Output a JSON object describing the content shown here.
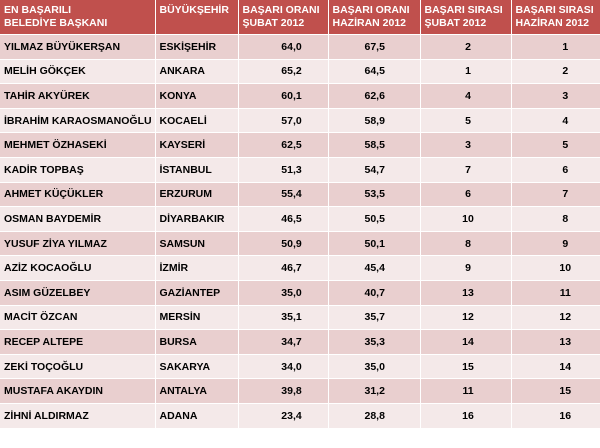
{
  "table": {
    "headers": [
      "EN BAŞARILI BELEDİYE BAŞKANI",
      "BÜYÜKŞEHİR",
      "BAŞARI ORANI ŞUBAT 2012",
      "BAŞARI ORANI HAZİRAN 2012",
      "BAŞARI SIRASI ŞUBAT 2012",
      "BAŞARI SIRASI HAZİRAN 2012"
    ],
    "header_lines": [
      [
        "EN BAŞARILI",
        "BELEDİYE BAŞKANI"
      ],
      [
        "BÜYÜKŞEHİR",
        ""
      ],
      [
        "BAŞARI ORANI",
        "ŞUBAT 2012"
      ],
      [
        "BAŞARI ORANI",
        "HAZİRAN 2012"
      ],
      [
        "BAŞARI SIRASI",
        "ŞUBAT 2012"
      ],
      [
        "BAŞARI SIRASI",
        "HAZİRAN 2012"
      ]
    ],
    "rows": [
      [
        "YILMAZ BÜYÜKERŞAN",
        "ESKİŞEHİR",
        "64,0",
        "67,5",
        "2",
        "1"
      ],
      [
        "MELİH GÖKÇEK",
        "ANKARA",
        "65,2",
        "64,5",
        "1",
        "2"
      ],
      [
        "TAHİR AKYÜREK",
        "KONYA",
        "60,1",
        "62,6",
        "4",
        "3"
      ],
      [
        "İBRAHİM KARAOSMANOĞLU",
        "KOCAELİ",
        "57,0",
        "58,9",
        "5",
        "4"
      ],
      [
        "MEHMET ÖZHASEKİ",
        "KAYSERİ",
        "62,5",
        "58,5",
        "3",
        "5"
      ],
      [
        "KADİR TOPBAŞ",
        "İSTANBUL",
        "51,3",
        "54,7",
        "7",
        "6"
      ],
      [
        "AHMET KÜÇÜKLER",
        "ERZURUM",
        "55,4",
        "53,5",
        "6",
        "7"
      ],
      [
        "OSMAN BAYDEMİR",
        "DİYARBAKIR",
        "46,5",
        "50,5",
        "10",
        "8"
      ],
      [
        "YUSUF ZİYA YILMAZ",
        "SAMSUN",
        "50,9",
        "50,1",
        "8",
        "9"
      ],
      [
        "AZİZ KOCAOĞLU",
        "İZMİR",
        "46,7",
        "45,4",
        "9",
        "10"
      ],
      [
        "ASIM GÜZELBEY",
        "GAZİANTEP",
        "35,0",
        "40,7",
        "13",
        "11"
      ],
      [
        "MACİT ÖZCAN",
        "MERSİN",
        "35,1",
        "35,7",
        "12",
        "12"
      ],
      [
        "RECEP ALTEPE",
        "BURSA",
        "34,7",
        "35,3",
        "14",
        "13"
      ],
      [
        "ZEKİ TOÇOĞLU",
        "SAKARYA",
        "34,0",
        "35,0",
        "15",
        "14"
      ],
      [
        "MUSTAFA AKAYDIN",
        "ANTALYA",
        "39,8",
        "31,2",
        "11",
        "15"
      ],
      [
        "ZİHNİ ALDIRMAZ",
        "ADANA",
        "23,4",
        "28,8",
        "16",
        "16"
      ]
    ]
  },
  "colors": {
    "header_bg": "#c0504d",
    "row_odd": "#e9cfcf",
    "row_even": "#f4e9e9"
  }
}
